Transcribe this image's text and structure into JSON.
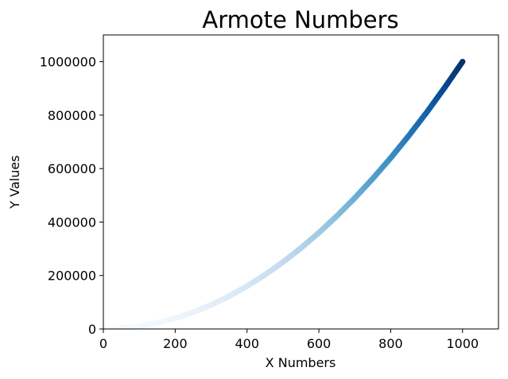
{
  "chart_data": {
    "type": "scatter",
    "title": "Armote Numbers",
    "xlabel": "X Numbers",
    "ylabel": "Y Values",
    "xlim": [
      0,
      1100
    ],
    "ylim": [
      0,
      1100000
    ],
    "x_ticks": [
      0,
      200,
      400,
      600,
      800,
      1000
    ],
    "y_ticks": [
      0,
      200000,
      400000,
      600000,
      800000,
      1000000
    ],
    "x_tick_labels": [
      "0",
      "200",
      "400",
      "600",
      "800",
      "1000"
    ],
    "y_tick_labels": [
      "0",
      "200000",
      "400000",
      "600000",
      "800000",
      "1000000"
    ],
    "grid": false,
    "colormap": "Blues",
    "series": [
      {
        "x": [
          1,
          50,
          100,
          150,
          200,
          250,
          300,
          350,
          400,
          450,
          500,
          550,
          600,
          650,
          700,
          750,
          800,
          850,
          900,
          950,
          1000
        ],
        "y": [
          1,
          2500,
          10000,
          22500,
          40000,
          62500,
          90000,
          122500,
          160000,
          202500,
          250000,
          302500,
          360000,
          422500,
          490000,
          562500,
          640000,
          722500,
          810000,
          902500,
          1000000
        ]
      }
    ]
  }
}
